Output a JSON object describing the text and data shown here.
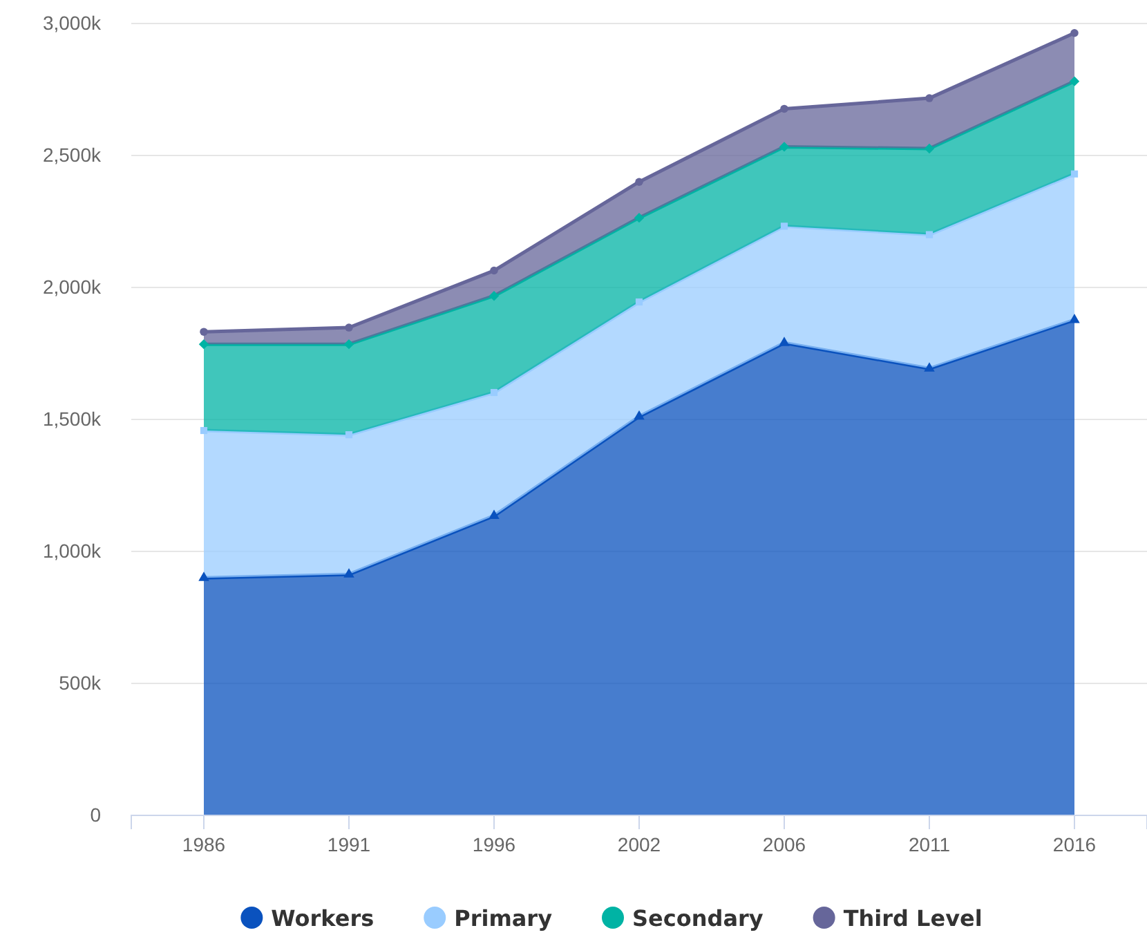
{
  "chart_data": {
    "type": "area",
    "stacked": true,
    "categories": [
      "1986",
      "1991",
      "1996",
      "2002",
      "2006",
      "2011",
      "2016"
    ],
    "series": [
      {
        "name": "Workers",
        "color": "#0a52be",
        "marker": "triangle",
        "values": [
          900000,
          913000,
          1135000,
          1511000,
          1790000,
          1693000,
          1877000
        ]
      },
      {
        "name": "Primary",
        "color": "#99ccff",
        "marker": "square",
        "values": [
          558000,
          529000,
          467000,
          434000,
          442000,
          507000,
          553000
        ]
      },
      {
        "name": "Secondary",
        "color": "#00b3a4",
        "marker": "diamond",
        "values": [
          327000,
          343000,
          366000,
          319000,
          301000,
          326000,
          351000
        ]
      },
      {
        "name": "Third Level",
        "color": "#66669a",
        "marker": "circle",
        "values": [
          47000,
          63000,
          96000,
          136000,
          144000,
          191000,
          183000
        ]
      }
    ],
    "ylim": [
      0,
      3000000
    ],
    "yticks": [
      0,
      {
        "value": 500000,
        "label": "500k"
      },
      {
        "value": 1000000,
        "label": "1,000k"
      },
      {
        "value": 1500000,
        "label": "1,500k"
      },
      {
        "value": 2000000,
        "label": "2,000k"
      },
      {
        "value": 2500000,
        "label": "2,500k"
      },
      {
        "value": 3000000,
        "label": "3,000k"
      }
    ],
    "grid": "y",
    "legend": "bottom"
  }
}
